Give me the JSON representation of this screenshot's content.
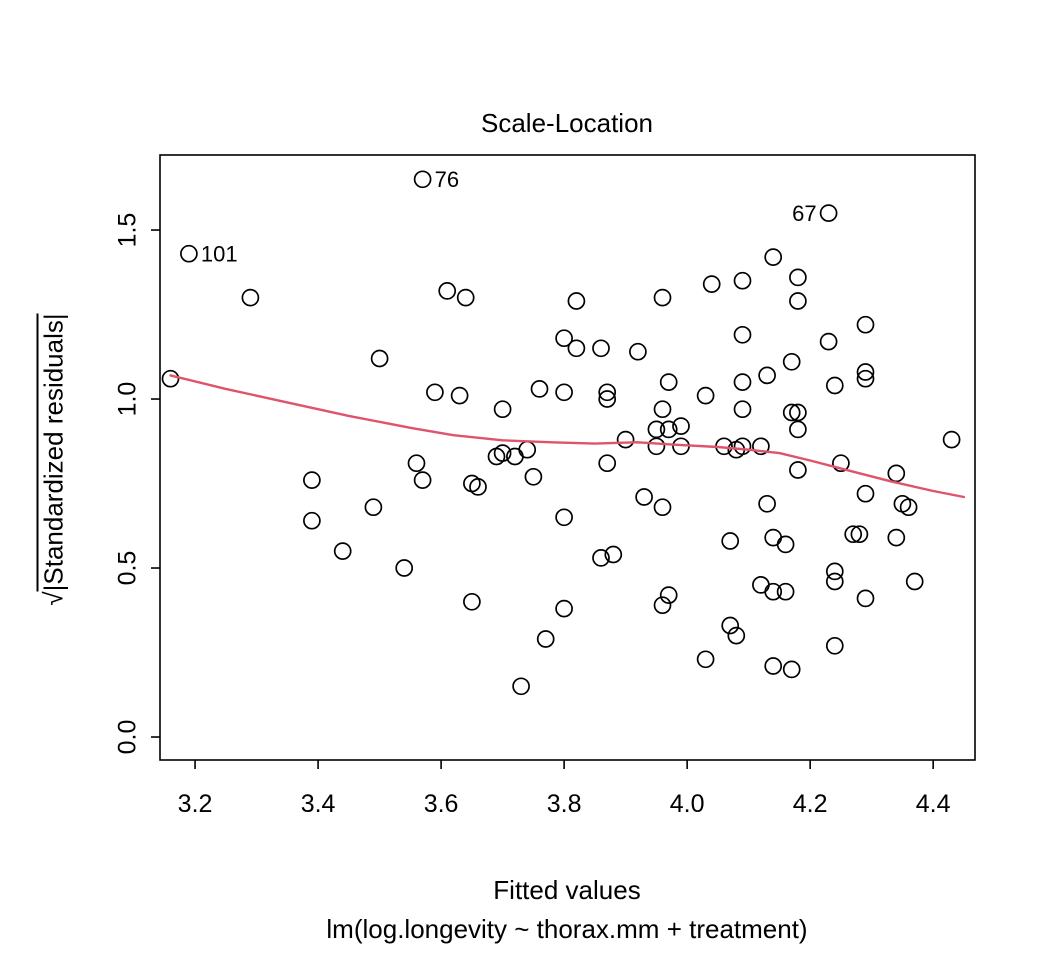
{
  "ylabel": {
    "sqrt": "√",
    "text": "|Standardized residuals|"
  },
  "colors": {
    "smooth_line": "#DF536B",
    "points_stroke": "#000000",
    "axis": "#000000"
  },
  "chart_data": {
    "type": "scatter",
    "title": "Scale-Location",
    "xlabel": "Fitted values",
    "subtitle": "lm(log.longevity ~ thorax.mm + treatment)",
    "ylabel": "√|Standardized residuals|",
    "xlim": [
      3.143,
      4.468
    ],
    "ylim": [
      -0.068,
      1.722
    ],
    "xticks": [
      3.2,
      3.4,
      3.6,
      3.8,
      4.0,
      4.2,
      4.4
    ],
    "xtick_labels": [
      "3.2",
      "3.4",
      "3.6",
      "3.8",
      "4.0",
      "4.2",
      "4.4"
    ],
    "yticks": [
      0.0,
      0.5,
      1.0,
      1.5
    ],
    "ytick_labels": [
      "0.0",
      "0.5",
      "1.0",
      "1.5"
    ],
    "grid": false,
    "legend": null,
    "points": [
      [
        3.19,
        1.43
      ],
      [
        3.57,
        1.65
      ],
      [
        4.23,
        1.55
      ],
      [
        3.29,
        1.3
      ],
      [
        3.61,
        1.32
      ],
      [
        3.64,
        1.3
      ],
      [
        3.82,
        1.29
      ],
      [
        3.96,
        1.3
      ],
      [
        4.04,
        1.34
      ],
      [
        4.09,
        1.35
      ],
      [
        4.14,
        1.42
      ],
      [
        4.18,
        1.36
      ],
      [
        4.18,
        1.29
      ],
      [
        4.29,
        1.22
      ],
      [
        4.09,
        1.19
      ],
      [
        4.23,
        1.17
      ],
      [
        3.8,
        1.18
      ],
      [
        3.82,
        1.15
      ],
      [
        3.86,
        1.15
      ],
      [
        3.92,
        1.14
      ],
      [
        3.5,
        1.12
      ],
      [
        4.17,
        1.11
      ],
      [
        4.29,
        1.08
      ],
      [
        4.29,
        1.06
      ],
      [
        3.97,
        1.05
      ],
      [
        4.13,
        1.07
      ],
      [
        4.09,
        1.05
      ],
      [
        3.16,
        1.06
      ],
      [
        3.59,
        1.02
      ],
      [
        3.63,
        1.01
      ],
      [
        3.76,
        1.03
      ],
      [
        3.8,
        1.02
      ],
      [
        3.87,
        1.02
      ],
      [
        3.87,
        1.0
      ],
      [
        4.03,
        1.01
      ],
      [
        4.24,
        1.04
      ],
      [
        3.7,
        0.97
      ],
      [
        3.96,
        0.97
      ],
      [
        4.09,
        0.97
      ],
      [
        4.17,
        0.96
      ],
      [
        4.18,
        0.96
      ],
      [
        3.95,
        0.91
      ],
      [
        3.97,
        0.91
      ],
      [
        3.99,
        0.92
      ],
      [
        4.18,
        0.91
      ],
      [
        4.43,
        0.88
      ],
      [
        3.9,
        0.88
      ],
      [
        3.95,
        0.86
      ],
      [
        3.99,
        0.86
      ],
      [
        4.06,
        0.86
      ],
      [
        4.08,
        0.85
      ],
      [
        4.09,
        0.86
      ],
      [
        4.12,
        0.86
      ],
      [
        3.87,
        0.81
      ],
      [
        3.69,
        0.83
      ],
      [
        3.7,
        0.84
      ],
      [
        3.72,
        0.83
      ],
      [
        3.74,
        0.85
      ],
      [
        3.56,
        0.81
      ],
      [
        4.25,
        0.81
      ],
      [
        4.18,
        0.79
      ],
      [
        4.34,
        0.78
      ],
      [
        3.57,
        0.76
      ],
      [
        3.65,
        0.75
      ],
      [
        3.66,
        0.74
      ],
      [
        3.39,
        0.76
      ],
      [
        3.75,
        0.77
      ],
      [
        4.29,
        0.72
      ],
      [
        4.35,
        0.69
      ],
      [
        4.36,
        0.68
      ],
      [
        4.13,
        0.69
      ],
      [
        3.96,
        0.68
      ],
      [
        3.93,
        0.71
      ],
      [
        3.8,
        0.65
      ],
      [
        3.39,
        0.64
      ],
      [
        3.49,
        0.68
      ],
      [
        4.27,
        0.6
      ],
      [
        4.28,
        0.6
      ],
      [
        4.34,
        0.59
      ],
      [
        4.14,
        0.59
      ],
      [
        4.16,
        0.57
      ],
      [
        4.07,
        0.58
      ],
      [
        3.86,
        0.53
      ],
      [
        3.88,
        0.54
      ],
      [
        3.44,
        0.55
      ],
      [
        3.54,
        0.5
      ],
      [
        4.24,
        0.49
      ],
      [
        4.24,
        0.46
      ],
      [
        4.12,
        0.45
      ],
      [
        4.14,
        0.43
      ],
      [
        4.16,
        0.43
      ],
      [
        3.97,
        0.42
      ],
      [
        3.96,
        0.39
      ],
      [
        4.37,
        0.46
      ],
      [
        4.29,
        0.41
      ],
      [
        3.65,
        0.4
      ],
      [
        3.8,
        0.38
      ],
      [
        4.07,
        0.33
      ],
      [
        4.08,
        0.3
      ],
      [
        3.77,
        0.29
      ],
      [
        4.24,
        0.27
      ],
      [
        4.03,
        0.23
      ],
      [
        4.14,
        0.21
      ],
      [
        4.17,
        0.2
      ],
      [
        3.73,
        0.15
      ]
    ],
    "smooth_line": {
      "name": "lowess smooth",
      "color": "#DF536B",
      "points": [
        [
          3.16,
          1.07
        ],
        [
          3.25,
          1.03
        ],
        [
          3.35,
          0.99
        ],
        [
          3.45,
          0.95
        ],
        [
          3.55,
          0.915
        ],
        [
          3.62,
          0.893
        ],
        [
          3.7,
          0.878
        ],
        [
          3.78,
          0.872
        ],
        [
          3.85,
          0.868
        ],
        [
          3.92,
          0.872
        ],
        [
          3.98,
          0.865
        ],
        [
          4.05,
          0.858
        ],
        [
          4.1,
          0.85
        ],
        [
          4.15,
          0.84
        ],
        [
          4.2,
          0.818
        ],
        [
          4.27,
          0.785
        ],
        [
          4.33,
          0.757
        ],
        [
          4.4,
          0.728
        ],
        [
          4.45,
          0.71
        ]
      ]
    },
    "annotations": [
      {
        "label": "101",
        "x": 3.19,
        "y": 1.43,
        "side": "right"
      },
      {
        "label": "76",
        "x": 3.57,
        "y": 1.65,
        "side": "right"
      },
      {
        "label": "67",
        "x": 4.23,
        "y": 1.55,
        "side": "left"
      }
    ]
  }
}
